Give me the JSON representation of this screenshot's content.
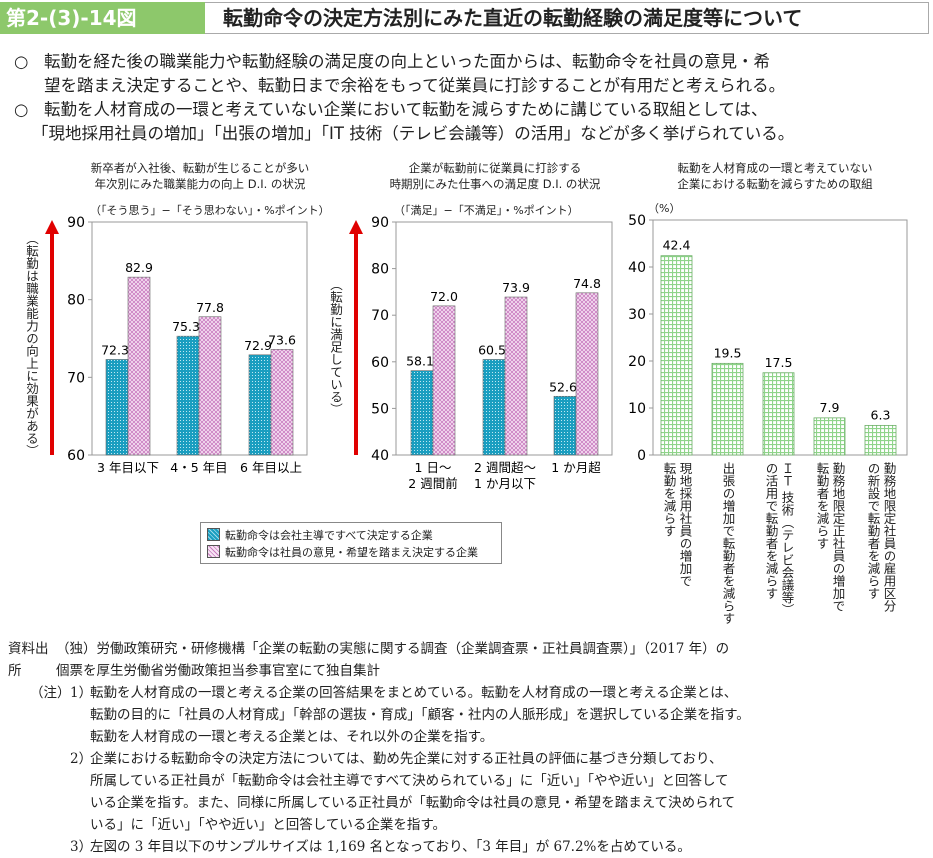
{
  "header": {
    "figure_number": "第2-(3)-14図",
    "title": "転勤命令の決定方法別にみた直近の転勤経験の満足度等について"
  },
  "bullets": [
    {
      "marker": "○",
      "lines": [
        "転勤を経た後の職業能力や転勤経験の満足度の向上といった面からは、転勤命令を社員の意見・希",
        "望を踏まえ決定することや、転勤日まで余裕をもって従業員に打診することが有用だと考えられる。"
      ]
    },
    {
      "marker": "○",
      "lines": [
        "転勤を人材育成の一環と考えていない企業において転勤を減らすために講じている取組としては、",
        "「現地採用社員の増加」「出張の増加」「IT 技術（テレビ会議等）の活用」などが多く挙げられている。"
      ]
    }
  ],
  "colors": {
    "series1": "#1a9ec0",
    "series2": "#e6a8e0",
    "series3": "#8fd48a",
    "arrow": "#e00000",
    "header": "#8dc86b"
  },
  "chart_data": [
    {
      "type": "bar",
      "title": [
        "新卒者が入社後、転勤が生じることが多い",
        "年次別にみた職業能力の向上 D.I. の状況"
      ],
      "unit": "（「そう思う」−「そう思わない」・%ポイント）",
      "ylabel": "（転勤は職業能力の向上に効果がある）",
      "ylim": [
        60,
        90
      ],
      "yticks": [
        60,
        70,
        80,
        90
      ],
      "categories": [
        "3 年目以下",
        "4・5 年目",
        "6 年目以上"
      ],
      "series": [
        {
          "name": "転勤命令は会社主導ですべて決定する企業",
          "values": [
            72.3,
            75.3,
            72.9
          ]
        },
        {
          "name": "転勤命令は社員の意見・希望を踏まえ決定する企業",
          "values": [
            82.9,
            77.8,
            73.6
          ]
        }
      ]
    },
    {
      "type": "bar",
      "title": [
        "企業が転勤前に従業員に打診する",
        "時期別にみた仕事への満足度 D.I. の状況"
      ],
      "unit": "（「満足」−「不満足」・%ポイント）",
      "ylabel": "（転勤に満足している）",
      "ylim": [
        40,
        90
      ],
      "yticks": [
        40,
        50,
        60,
        70,
        80,
        90
      ],
      "categories": [
        [
          "1 日〜",
          "2 週間前"
        ],
        [
          "2 週間超〜",
          "1 か月以下"
        ],
        [
          "1 か月超"
        ]
      ],
      "series": [
        {
          "name": "転勤命令は会社主導ですべて決定する企業",
          "values": [
            58.1,
            60.5,
            52.6
          ]
        },
        {
          "name": "転勤命令は社員の意見・希望を踏まえ決定する企業",
          "values": [
            72.0,
            73.9,
            74.8
          ]
        }
      ]
    },
    {
      "type": "bar",
      "title": [
        "転勤を人材育成の一環と考えていない",
        "企業における転勤を減らすための取組"
      ],
      "unit": "（%）",
      "ylim": [
        0,
        50
      ],
      "yticks": [
        0,
        10,
        20,
        30,
        40,
        50
      ],
      "categories": [
        [
          "現地採用社員の増加で",
          "転勤を減らす"
        ],
        [
          "出張の増加で転勤者を減らす"
        ],
        [
          "ＩＴ 技術（テレビ会議等）",
          "の活用で転勤者を減らす"
        ],
        [
          "勤務地限定正社員の増加で",
          "転勤者を減らす"
        ],
        [
          "勤務地限定社員の雇用区分",
          "の新設で転勤者を減らす"
        ]
      ],
      "values": [
        42.4,
        19.5,
        17.5,
        7.9,
        6.3
      ]
    }
  ],
  "legend": [
    "転勤命令は会社主導ですべて決定する企業",
    "転勤命令は社員の意見・希望を踏まえ決定する企業"
  ],
  "notes": {
    "source_label": "資料出所",
    "source_lines": [
      "（独）労働政策研究・研修機構「企業の転勤の実態に関する調査（企業調査票・正社員調査票）」（2017 年）の",
      "個票を厚生労働省労働政策担当参事官室にて独自集計"
    ],
    "note_label": "（注）",
    "items": [
      {
        "num": "1）",
        "lines": [
          "転勤を人材育成の一環と考える企業の回答結果をまとめている。転勤を人材育成の一環と考える企業とは、",
          "転勤の目的に「社員の人材育成」「幹部の選抜・育成」「顧客・社内の人脈形成」を選択している企業を指す。",
          "転勤を人材育成の一環と考える企業とは、それ以外の企業を指す。"
        ]
      },
      {
        "num": "2）",
        "lines": [
          "企業における転勤命令の決定方法については、勤め先企業に対する正社員の評価に基づき分類しており、",
          "所属している正社員が「転勤命令は会社主導ですべて決められている」に「近い」「やや近い」と回答して",
          "いる企業を指す。また、同様に所属している正社員が「転勤命令は社員の意見・希望を踏まえて決められて",
          "いる」に「近い」「やや近い」と回答している企業を指す。"
        ]
      },
      {
        "num": "3）",
        "lines": [
          "左図の 3 年目以下のサンプルサイズは 1,169 名となっており、「3 年目」が 67.2%を占めている。"
        ]
      }
    ]
  }
}
